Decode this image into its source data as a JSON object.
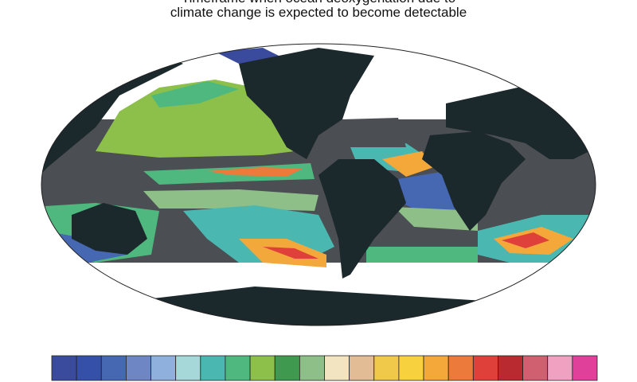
{
  "header": {
    "title_lines": [
      "Timeframe when ocean deoxygenation due to",
      "climate change is expected to become detectable"
    ]
  },
  "colorbar": {
    "colors": [
      "#3a4a9c",
      "#3550a8",
      "#4668b2",
      "#6f86c4",
      "#8fb0dc",
      "#a6d8da",
      "#4ab8b0",
      "#4fb87e",
      "#8cc04a",
      "#3f9a4f",
      "#8fbf88",
      "#f2e4c0",
      "#e2bc94",
      "#f0c84a",
      "#f7d23e",
      "#f4a83a",
      "#ec7a3a",
      "#e0403a",
      "#b82a30",
      "#d06070",
      "#f0a0c0",
      "#e0409a"
    ]
  }
}
